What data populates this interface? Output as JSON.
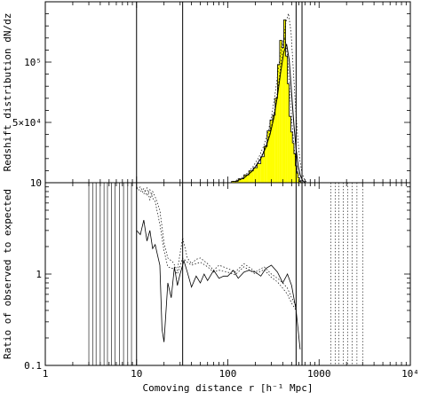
{
  "chart_data": [
    {
      "panel": "top",
      "type": "bar",
      "x_scale": "log",
      "xlim": [
        1,
        10000
      ],
      "ylim": [
        10,
        150000
      ],
      "ylabel": "Redshift distribution dN/dz",
      "y_tick_labels": [
        {
          "value": 10,
          "label": "10"
        },
        {
          "value": 50000,
          "label": "5×10⁴"
        },
        {
          "value": 100000,
          "label": "10⁵"
        }
      ],
      "colors": {
        "histogram_fill": "#ffff00",
        "histogram_edge": "#000000",
        "axes": "#000000"
      },
      "histogram": {
        "x": [
          120,
          140,
          160,
          180,
          200,
          220,
          240,
          260,
          280,
          300,
          320,
          340,
          360,
          380,
          400,
          420,
          440,
          460,
          480,
          500,
          520,
          540,
          560,
          580,
          600,
          620
        ],
        "values": [
          1200,
          3200,
          6500,
          9800,
          12400,
          15800,
          21500,
          30000,
          43000,
          52000,
          56000,
          70000,
          98000,
          118000,
          112000,
          135000,
          105000,
          82000,
          55000,
          42000,
          33000,
          24000,
          14000,
          8000,
          4000,
          1000
        ]
      },
      "smooth_fit": {
        "x": [
          120,
          150,
          180,
          200,
          230,
          260,
          290,
          320,
          350,
          380,
          410,
          440,
          470,
          500,
          530,
          560,
          590,
          620,
          660,
          700
        ],
        "values": [
          800,
          4000,
          8800,
          13000,
          20000,
          29000,
          40000,
          54000,
          72000,
          92000,
          108000,
          115000,
          102000,
          74000,
          48000,
          28000,
          14000,
          6500,
          1800,
          200
        ]
      },
      "vertical_lines_x": [
        10,
        32,
        560,
        650
      ]
    },
    {
      "panel": "bottom",
      "type": "line",
      "x_scale": "log",
      "y_scale": "log",
      "xlim": [
        1,
        10000
      ],
      "ylim": [
        0.1,
        10
      ],
      "xlabel": "Comoving distance r [h⁻¹ Mpc]",
      "ylabel": "Ratio of observed to expected",
      "x_tick_labels": [
        {
          "value": 1,
          "label": "1"
        },
        {
          "value": 10,
          "label": "10"
        },
        {
          "value": 100,
          "label": "100"
        },
        {
          "value": 1000,
          "label": "1000"
        },
        {
          "value": 10000,
          "label": "10⁴"
        }
      ],
      "y_tick_labels": [
        {
          "value": 0.1,
          "label": "0.1"
        },
        {
          "value": 1,
          "label": "1"
        },
        {
          "value": 10,
          "label": "10"
        }
      ],
      "series": [
        {
          "style": "solid",
          "x": [
            10,
            11,
            12,
            13,
            14,
            15,
            16,
            17,
            18,
            19,
            20,
            22,
            24,
            26,
            28,
            30,
            33,
            36,
            40,
            45,
            50,
            55,
            60,
            70,
            80,
            90,
            100,
            115,
            130,
            150,
            170,
            200,
            230,
            260,
            300,
            350,
            400,
            450,
            500,
            560,
            620
          ],
          "values": [
            3.0,
            2.7,
            3.9,
            2.3,
            3.0,
            1.9,
            2.1,
            1.6,
            1.25,
            0.25,
            0.18,
            0.8,
            0.55,
            1.2,
            0.75,
            1.0,
            1.4,
            1.05,
            0.72,
            0.95,
            0.8,
            1.0,
            0.85,
            1.1,
            0.9,
            0.95,
            0.95,
            1.1,
            0.9,
            1.05,
            1.1,
            1.05,
            0.95,
            1.15,
            1.25,
            1.05,
            0.8,
            1.0,
            0.75,
            0.4,
            0.15
          ]
        },
        {
          "style": "dotted",
          "x": [
            10,
            11,
            12,
            13,
            14,
            15,
            16,
            18,
            20,
            22,
            25,
            28,
            32,
            36,
            40,
            45,
            50,
            60,
            70,
            80,
            100,
            120,
            150,
            180,
            200,
            250,
            300,
            350,
            400,
            450,
            500,
            560
          ],
          "values": [
            8.5,
            9.0,
            7.5,
            8.8,
            6.5,
            8.0,
            7.0,
            5.0,
            2.2,
            1.5,
            1.35,
            1.1,
            2.5,
            1.5,
            1.3,
            1.45,
            1.5,
            1.3,
            1.1,
            1.25,
            1.15,
            1.05,
            1.3,
            1.15,
            1.05,
            1.2,
            1.0,
            0.9,
            0.8,
            0.7,
            0.55,
            0.45
          ]
        },
        {
          "style": "dotted",
          "x": [
            10,
            11,
            12,
            13,
            14,
            15,
            16,
            18,
            20,
            22,
            25,
            28,
            32,
            36,
            40,
            45,
            50,
            60,
            70,
            80,
            100,
            120,
            150,
            180,
            200,
            250,
            300,
            350,
            400,
            450,
            500,
            560
          ],
          "values": [
            9.0,
            8.0,
            8.6,
            7.2,
            8.4,
            6.8,
            6.2,
            3.5,
            1.8,
            1.2,
            1.15,
            1.0,
            1.5,
            1.35,
            1.25,
            1.3,
            1.35,
            1.2,
            1.05,
            1.1,
            1.05,
            0.98,
            1.2,
            1.08,
            1.0,
            1.12,
            0.92,
            0.82,
            0.7,
            0.6,
            0.48,
            0.4
          ]
        }
      ],
      "vertical_spikes_x": [
        3.0,
        3.3,
        3.6,
        4.0,
        4.4,
        4.8,
        5.3,
        5.8,
        6.5,
        7.2,
        8.0,
        8.8,
        1350,
        1500,
        1650,
        1850,
        2050,
        2300,
        2600,
        3000
      ],
      "vertical_lines_x": [
        10,
        32,
        560,
        650
      ]
    }
  ]
}
